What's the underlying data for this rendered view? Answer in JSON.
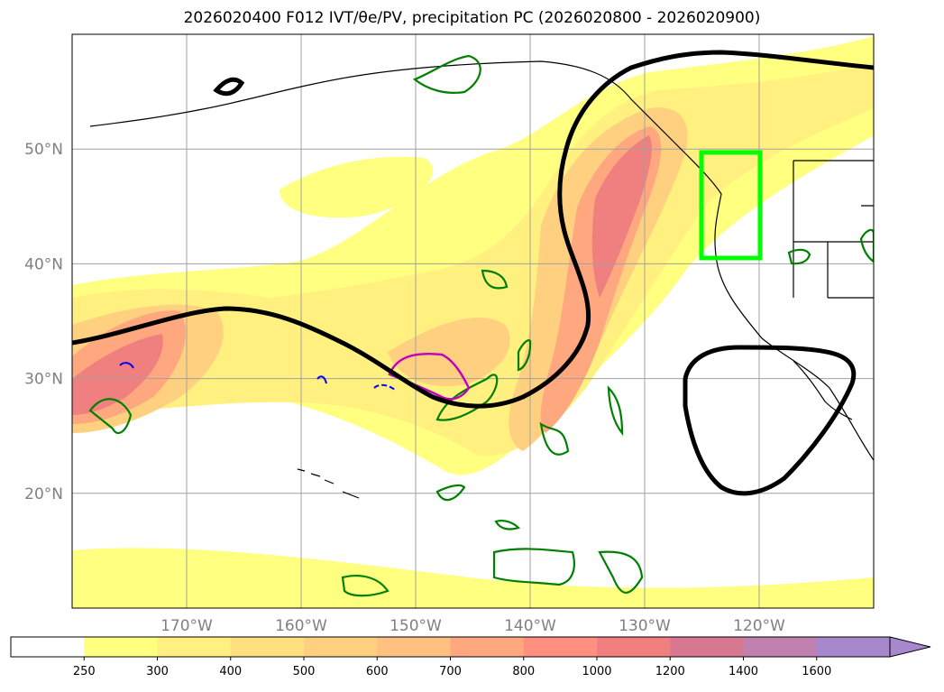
{
  "title": "2026020400 F012 IVT/θe/PV, precipitation PC (2026020800 - 2026020900)",
  "map": {
    "lon_range": [
      -180,
      -110
    ],
    "lat_range": [
      10,
      60
    ],
    "lat_ticks": [
      {
        "value": 20,
        "label": "20°N"
      },
      {
        "value": 30,
        "label": "30°N"
      },
      {
        "value": 40,
        "label": "40°N"
      },
      {
        "value": 50,
        "label": "50°N"
      }
    ],
    "lon_ticks": [
      {
        "value": -170,
        "label": "170°W"
      },
      {
        "value": -160,
        "label": "160°W"
      },
      {
        "value": -150,
        "label": "150°W"
      },
      {
        "value": -140,
        "label": "140°W"
      },
      {
        "value": -130,
        "label": "130°W"
      },
      {
        "value": -120,
        "label": "120°W"
      }
    ],
    "grid": true,
    "highlight_box": {
      "lon": [
        -125,
        -120
      ],
      "lat": [
        40.5,
        49.5
      ],
      "color": "#00ff00"
    },
    "colors": {
      "ivt": [
        "#ffff80",
        "#fff080",
        "#ffe080",
        "#ffd080",
        "#ffb880",
        "#ffa080",
        "#ff8a80",
        "#f07070"
      ],
      "theta_e_contour": "#000000",
      "pv_contour": "#008000",
      "precip_contour": "#c000c0",
      "neg_contour": "#0000ff"
    }
  },
  "colorbar": {
    "levels": [
      "250",
      "300",
      "400",
      "500",
      "600",
      "700",
      "800",
      "1000",
      "1200",
      "1400",
      "1600"
    ],
    "colors": [
      "#ffffff",
      "#ffff80",
      "#fff080",
      "#ffe080",
      "#ffd080",
      "#ffc080",
      "#ffa880",
      "#ff9080",
      "#f08080",
      "#d87890",
      "#c080b0",
      "#a888cc"
    ],
    "extend": "max"
  }
}
